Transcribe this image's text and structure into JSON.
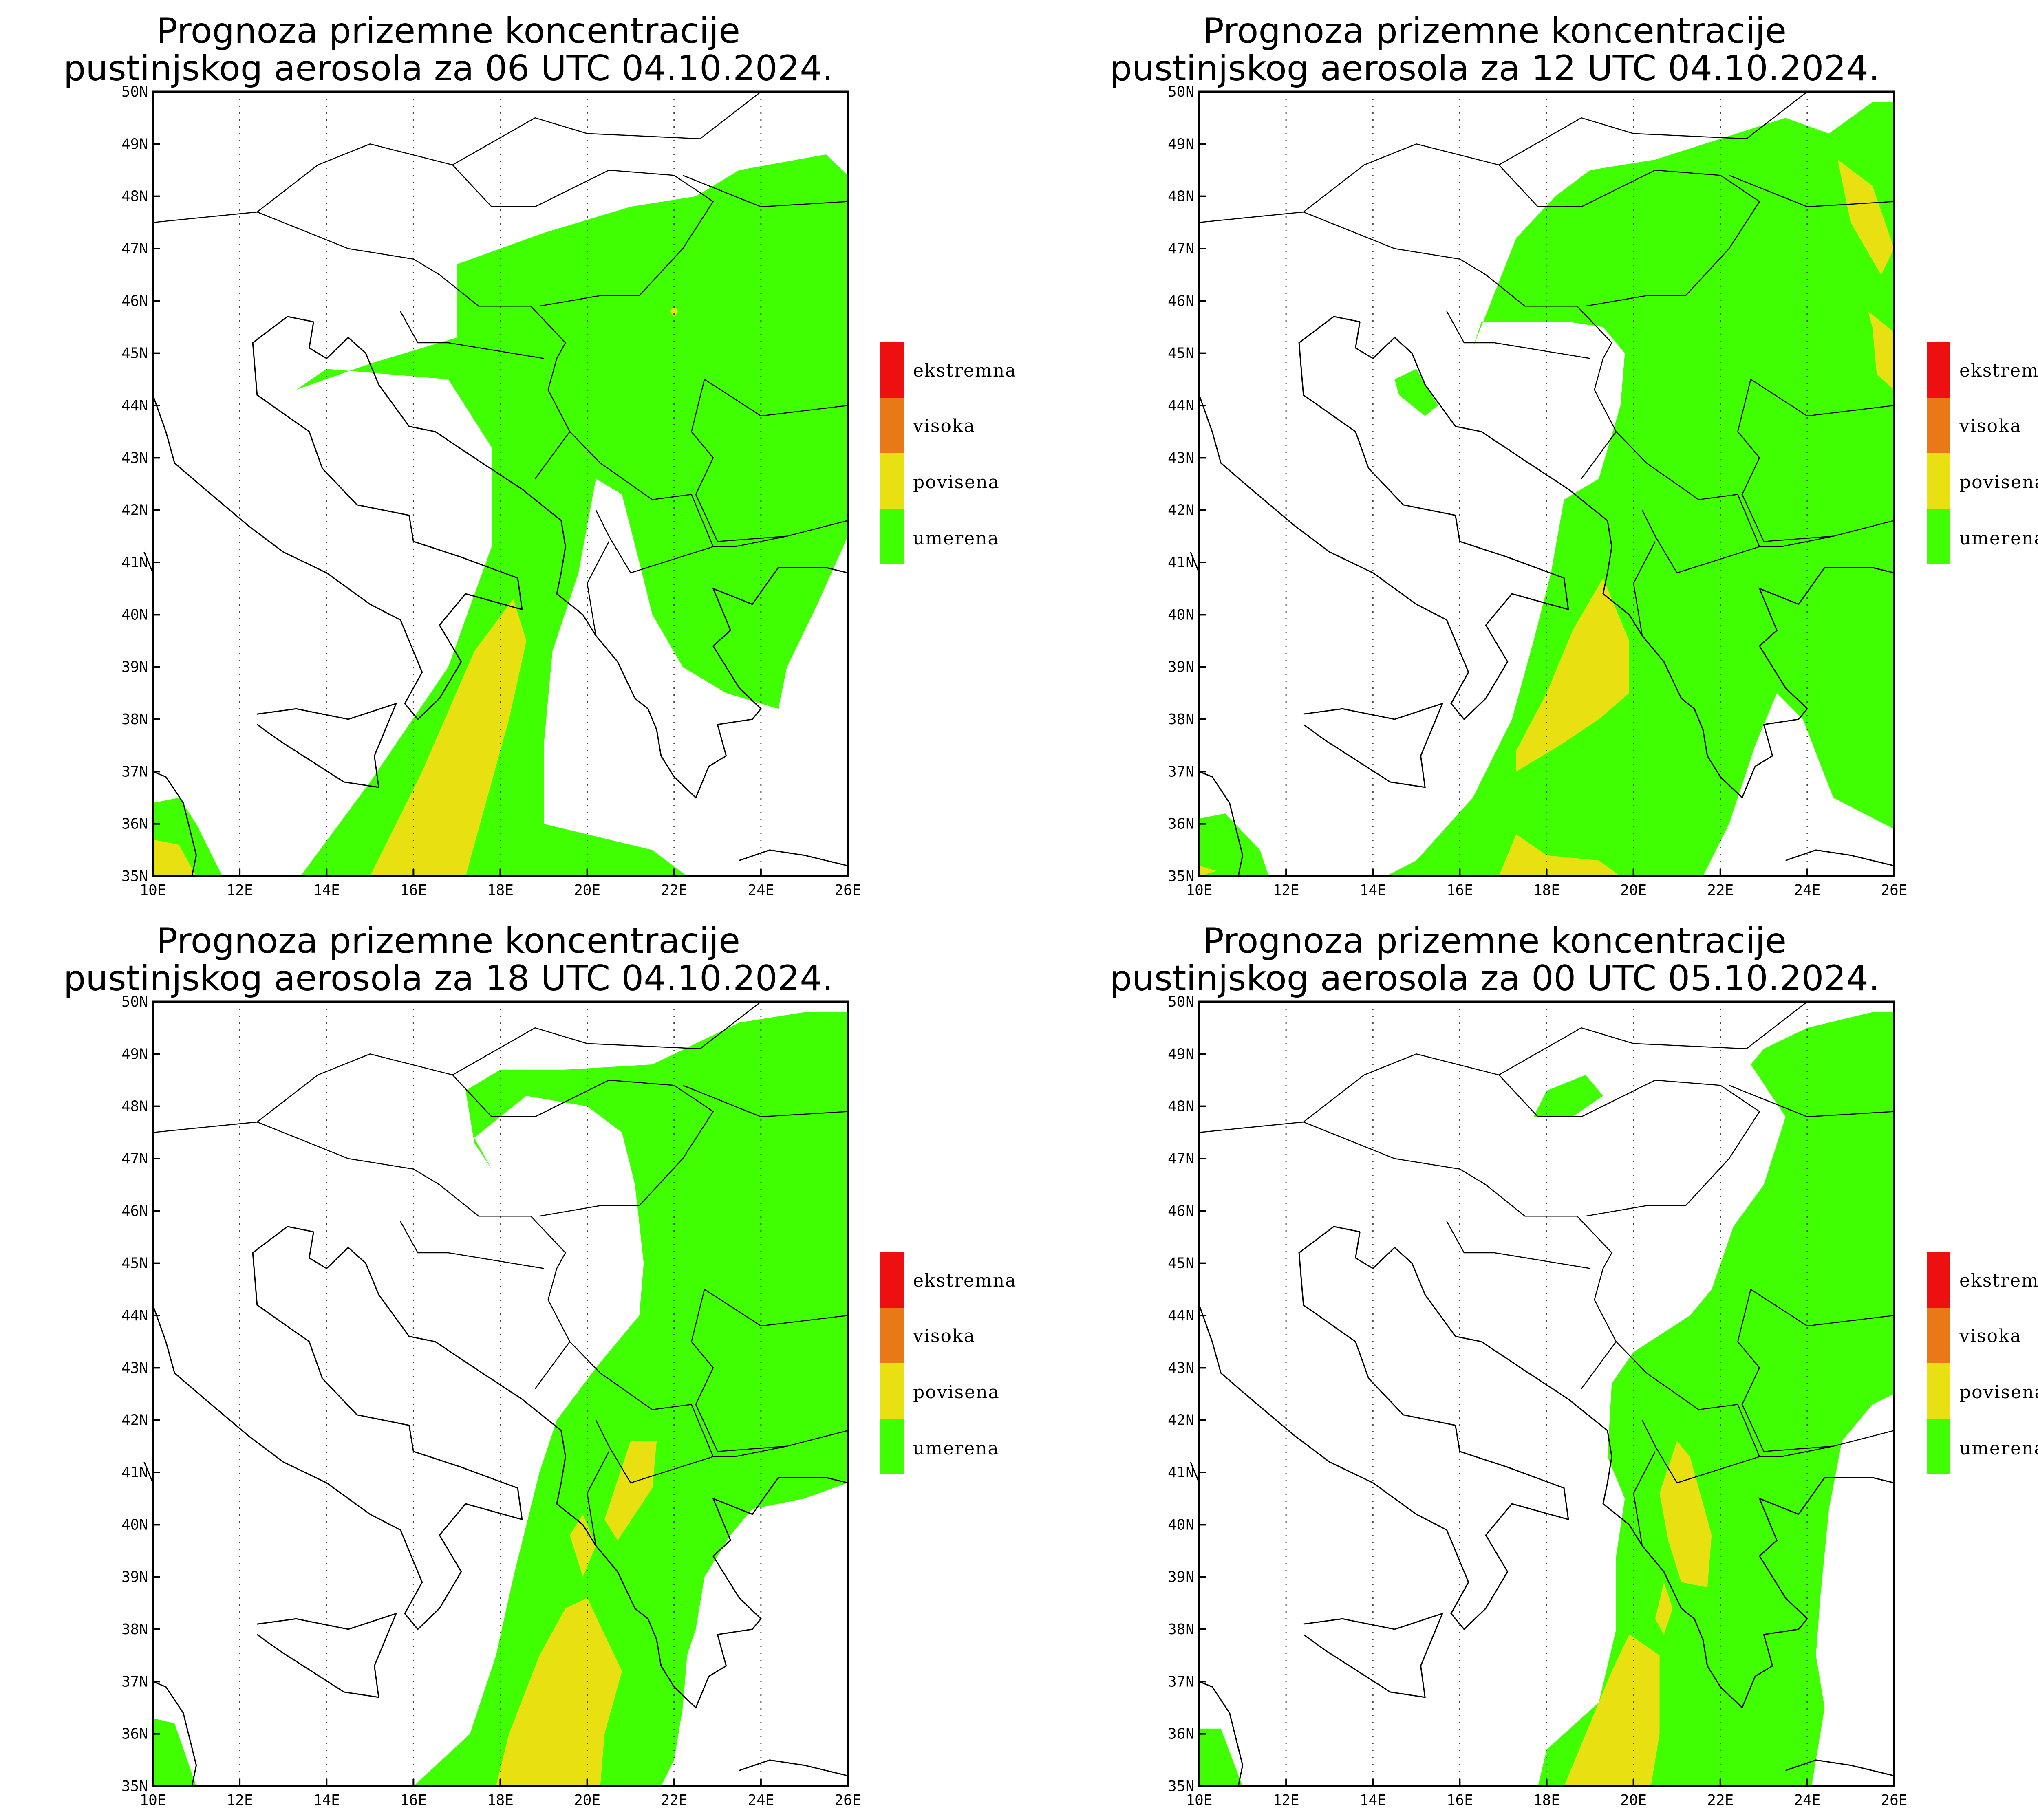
{
  "title_line1": "Prognoza prizemne koncentracije",
  "panels": [
    {
      "id": "p06",
      "title_line2": "pustinjskog aerosola za 06 UTC 04.10.2024."
    },
    {
      "id": "p12",
      "title_line2": "pustinjskog aerosola za 12 UTC 04.10.2024."
    },
    {
      "id": "p18",
      "title_line2": "pustinjskog aerosola za 18 UTC 04.10.2024."
    },
    {
      "id": "p00",
      "title_line2": "pustinjskog aerosola za 00 UTC 05.10.2024."
    }
  ],
  "legend": [
    {
      "label": "ekstremna",
      "color": "#ee1010"
    },
    {
      "label": "visoka",
      "color": "#e87818"
    },
    {
      "label": "povisena",
      "color": "#e8e010"
    },
    {
      "label": "umerena",
      "color": "#40ff00"
    }
  ],
  "axes": {
    "x_ticks": [
      "10E",
      "12E",
      "14E",
      "16E",
      "18E",
      "20E",
      "22E",
      "24E",
      "26E"
    ],
    "y_ticks": [
      "35N",
      "36N",
      "37N",
      "38N",
      "39N",
      "40N",
      "41N",
      "42N",
      "43N",
      "44N",
      "45N",
      "46N",
      "47N",
      "48N",
      "49N",
      "50N"
    ],
    "lon_range": [
      10,
      26
    ],
    "lat_range": [
      35,
      50
    ]
  },
  "colors": {
    "moderate": "#40ff00",
    "elevated": "#e8e010",
    "border": "#000000"
  }
}
